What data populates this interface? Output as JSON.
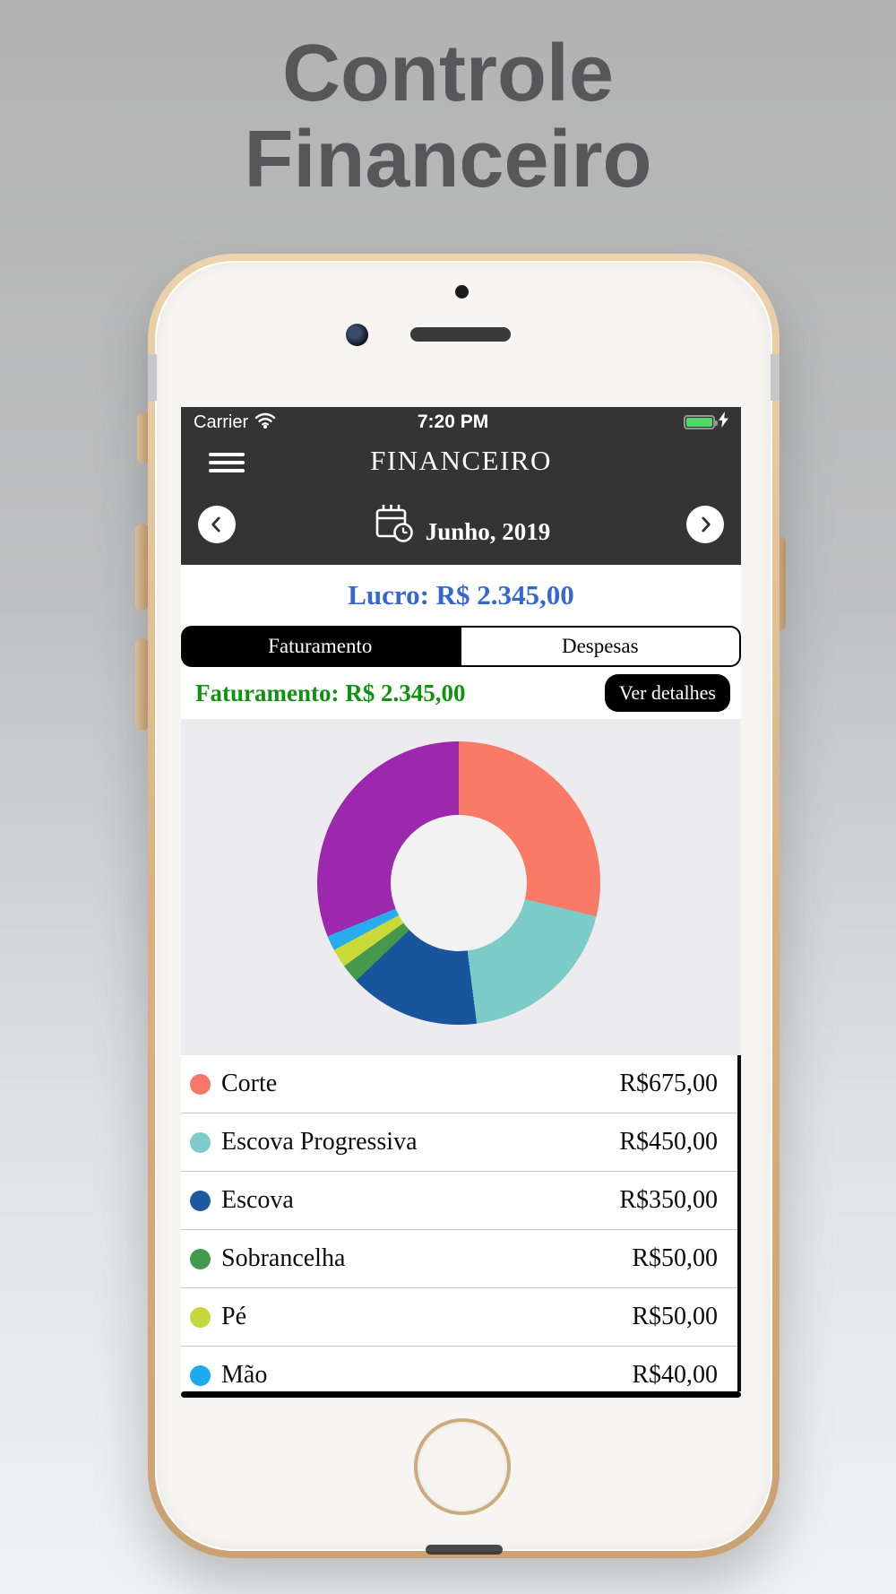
{
  "page": {
    "title_line1": "Controle",
    "title_line2": "Financeiro"
  },
  "statusbar": {
    "carrier": "Carrier",
    "time": "7:20 PM",
    "battery_color": "#53d769"
  },
  "header": {
    "app_title": "FINANCEIRO",
    "month_label": "Junho, 2019"
  },
  "summary": {
    "lucro": "Lucro: R$ 2.345,00",
    "lucro_color": "#3666cf"
  },
  "tabs": [
    {
      "label": "Faturamento",
      "active": true
    },
    {
      "label": "Despesas",
      "active": false
    }
  ],
  "detail": {
    "faturamento_label": "Faturamento: R$ 2.345,00",
    "faturamento_color": "#0f930f",
    "ver_detalhes_label": "Ver detalhes"
  },
  "chart_data": {
    "type": "pie",
    "donut": true,
    "start_angle_deg": 0,
    "currency": "R$",
    "total_visible_on_screen": 2345,
    "slices": [
      {
        "label": "Corte",
        "value": 675,
        "color": "#f97b67"
      },
      {
        "label": "Escova Progressiva",
        "value": 450,
        "color": "#7bcbc8"
      },
      {
        "label": "Escova",
        "value": 350,
        "color": "#19559c"
      },
      {
        "label": "Sobrancelha",
        "value": 50,
        "color": "#46994c"
      },
      {
        "label": "Pé",
        "value": 50,
        "color": "#c9da39"
      },
      {
        "label": "Mão",
        "value": 40,
        "color": "#29abf0"
      },
      {
        "label": "",
        "value": 730,
        "color": "#9c28ae"
      }
    ],
    "legend_position": "below"
  },
  "legend": {
    "items": [
      {
        "name": "Corte",
        "value": "R$675,00",
        "color": "#f5766b"
      },
      {
        "name": "Escova Progressiva",
        "value": "R$450,00",
        "color": "#7dccca"
      },
      {
        "name": "Escova",
        "value": "R$350,00",
        "color": "#1b5a9e"
      },
      {
        "name": "Sobrancelha",
        "value": "R$50,00",
        "color": "#46994c"
      },
      {
        "name": "Pé",
        "value": "R$50,00",
        "color": "#c6d83c"
      },
      {
        "name": "Mão",
        "value": "R$40,00",
        "color": "#1eaaee"
      }
    ]
  }
}
